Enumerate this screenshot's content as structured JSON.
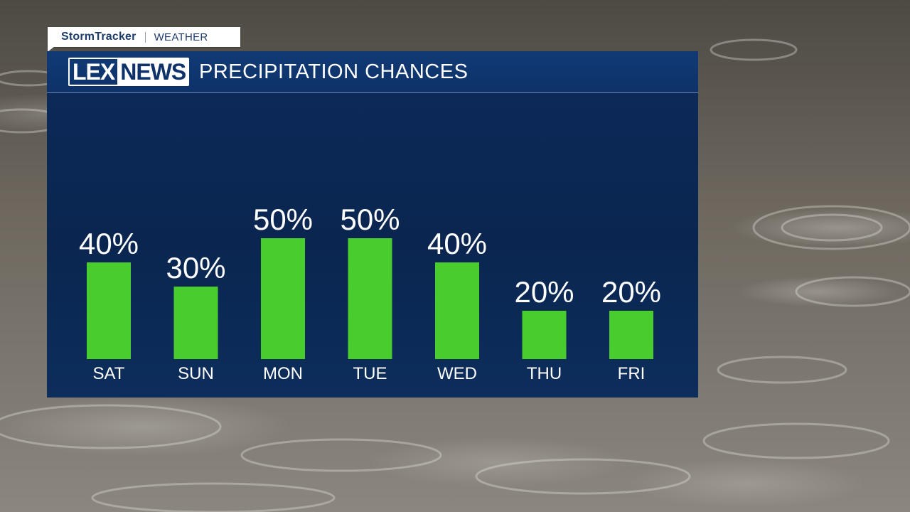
{
  "brand": {
    "name": "StormTracker",
    "divider": "|",
    "section": "WEATHER"
  },
  "station_logo": {
    "part1": "LEX",
    "part2": "NEWS"
  },
  "panel": {
    "title": "PRECIPITATION CHANCES"
  },
  "colors": {
    "bar": "#48cc2e",
    "panel": "#0b2850",
    "header": "#113a75",
    "text": "#ffffff"
  },
  "chart_data": {
    "type": "bar",
    "title": "PRECIPITATION CHANCES",
    "categories": [
      "SAT",
      "SUN",
      "MON",
      "TUE",
      "WED",
      "THU",
      "FRI"
    ],
    "values": [
      40,
      30,
      50,
      50,
      40,
      20,
      20
    ],
    "data_labels": [
      "40%",
      "30%",
      "50%",
      "50%",
      "40%",
      "20%",
      "20%"
    ],
    "unit": "%",
    "ylim": [
      0,
      100
    ],
    "grid": false,
    "legend": "none"
  }
}
